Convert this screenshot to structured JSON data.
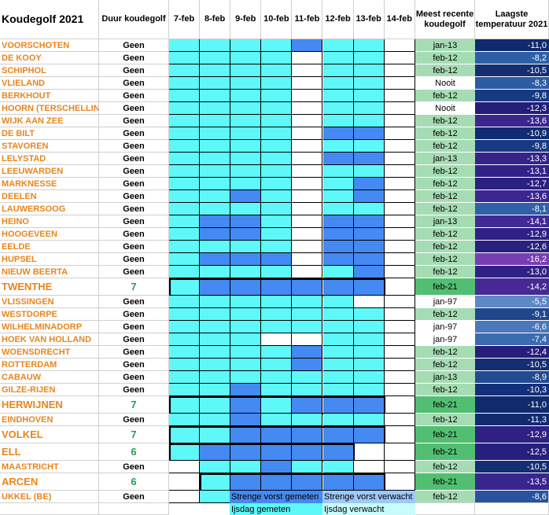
{
  "title": "Koudegolf 2021",
  "headers": {
    "duration": "Duur koudegolf",
    "days": [
      "7-feb",
      "8-feb",
      "9-feb",
      "10-feb",
      "11-feb",
      "12-feb",
      "13-feb",
      "14-feb"
    ],
    "recent": "Meest recente koudegolf",
    "lowest": "Laagste temperatuur 2021"
  },
  "colors": {
    "ijsdag_gemeten": "#5ef8f8",
    "strenge_gemeten": "#4589f2",
    "recent_light": "#a6dcb4",
    "recent_dark": "#52be72",
    "station": "#e8851c",
    "wave_count": "#20a050"
  },
  "day_codes": {
    "I": "IJsdag gemeten",
    "S": "Strenge vorst gemeten",
    "W": "Geen ijsdag"
  },
  "rows": [
    {
      "station": "VOORSCHOTEN",
      "duration": "Geen",
      "days": "IIIISIIW",
      "recent": "jan-13",
      "lowest": "-11,0",
      "temp_color": "#0f2a6d"
    },
    {
      "station": "DE KOOY",
      "duration": "Geen",
      "days": "IIIIWIIW",
      "recent": "feb-12",
      "lowest": "-8,2",
      "temp_color": "#2e5fa6"
    },
    {
      "station": "SCHIPHOL",
      "duration": "Geen",
      "days": "IIIIWIIW",
      "recent": "feb-12",
      "lowest": "-10,5",
      "temp_color": "#142d73"
    },
    {
      "station": "VLIELAND",
      "duration": "Geen",
      "days": "IIIIWIIW",
      "recent": "Nooit",
      "lowest": "-8,3",
      "temp_color": "#2c5ca3"
    },
    {
      "station": "BERKHOUT",
      "duration": "Geen",
      "days": "IIIIWIIW",
      "recent": "feb-12",
      "lowest": "-9,8",
      "temp_color": "#183a82"
    },
    {
      "station": "HOORN (TERSCHELLING)",
      "duration": "Geen",
      "days": "IIIIWIIW",
      "recent": "Nooit",
      "lowest": "-12,3",
      "temp_color": "#231e7a"
    },
    {
      "station": "WIJK AAN ZEE",
      "duration": "Geen",
      "days": "IIIIWIIW",
      "recent": "feb-12",
      "lowest": "-13,6",
      "temp_color": "#3b2690"
    },
    {
      "station": "DE BILT",
      "duration": "Geen",
      "days": "IIIIWSSW",
      "recent": "feb-12",
      "lowest": "-10,9",
      "temp_color": "#102b6f"
    },
    {
      "station": "STAVOREN",
      "duration": "Geen",
      "days": "IIIIWIIW",
      "recent": "feb-12",
      "lowest": "-9,8",
      "temp_color": "#183a82"
    },
    {
      "station": "LELYSTAD",
      "duration": "Geen",
      "days": "IIIIWSSW",
      "recent": "jan-13",
      "lowest": "-13,3",
      "temp_color": "#36238a"
    },
    {
      "station": "LEEUWARDEN",
      "duration": "Geen",
      "days": "IIIIWIIW",
      "recent": "feb-12",
      "lowest": "-13,1",
      "temp_color": "#322286"
    },
    {
      "station": "MARKNESSE",
      "duration": "Geen",
      "days": "IIIIWISW",
      "recent": "feb-12",
      "lowest": "-12,7",
      "temp_color": "#2a2080"
    },
    {
      "station": "DEELEN",
      "duration": "Geen",
      "days": "IISIWISW",
      "recent": "feb-12",
      "lowest": "-13,6",
      "temp_color": "#3b2690"
    },
    {
      "station": "LAUWERSOOG",
      "duration": "Geen",
      "days": "IIIIWIIW",
      "recent": "feb-12",
      "lowest": "-8,1",
      "temp_color": "#3061a8"
    },
    {
      "station": "HEINO",
      "duration": "Geen",
      "days": "ISSIWSSW",
      "recent": "jan-13",
      "lowest": "-14,1",
      "temp_color": "#432994"
    },
    {
      "station": "HOOGEVEEN",
      "duration": "Geen",
      "days": "ISSIWSSW",
      "recent": "feb-12",
      "lowest": "-12,9",
      "temp_color": "#2e2183"
    },
    {
      "station": "EELDE",
      "duration": "Geen",
      "days": "IIIIWSSW",
      "recent": "feb-12",
      "lowest": "-12,6",
      "temp_color": "#281f7e"
    },
    {
      "station": "HUPSEL",
      "duration": "Geen",
      "days": "ISSSWSSW",
      "recent": "feb-12",
      "lowest": "-16,2",
      "temp_color": "#7a3eb3"
    },
    {
      "station": "NIEUW BEERTA",
      "duration": "Geen",
      "days": "IIIIWISW",
      "recent": "feb-12",
      "lowest": "-13,0",
      "temp_color": "#302285"
    },
    {
      "station": "TWENTHE",
      "duration": "7",
      "days": "ISSSSSSW",
      "recent": "feb-21",
      "lowest": "-14,2",
      "temp_color": "#452a95",
      "wave": true,
      "span": [
        0,
        7
      ]
    },
    {
      "station": "VLISSINGEN",
      "duration": "Geen",
      "days": "IIIIIIWW",
      "recent": "jan-97",
      "lowest": "-5,5",
      "temp_color": "#5d88c3"
    },
    {
      "station": "WESTDORPE",
      "duration": "Geen",
      "days": "IIIIIIIW",
      "recent": "feb-12",
      "lowest": "-9,1",
      "temp_color": "#20478d"
    },
    {
      "station": "WILHELMINADORP",
      "duration": "Geen",
      "days": "IIIIIIIW",
      "recent": "jan-97",
      "lowest": "-6,6",
      "temp_color": "#4a78b8"
    },
    {
      "station": "HOEK VAN HOLLAND",
      "duration": "Geen",
      "days": "IIIWWIIW",
      "recent": "jan-97",
      "lowest": "-7,4",
      "temp_color": "#3d6bb0"
    },
    {
      "station": "WOENSDRECHT",
      "duration": "Geen",
      "days": "IIIISIIW",
      "recent": "feb-12",
      "lowest": "-12,4",
      "temp_color": "#251e7b"
    },
    {
      "station": "ROTTERDAM",
      "duration": "Geen",
      "days": "IIIISIIW",
      "recent": "feb-12",
      "lowest": "-10,5",
      "temp_color": "#142d73"
    },
    {
      "station": "CABAUW",
      "duration": "Geen",
      "days": "IIIIIIIW",
      "recent": "jan-13",
      "lowest": "-8,9",
      "temp_color": "#234b91"
    },
    {
      "station": "GILZE-RIJEN",
      "duration": "Geen",
      "days": "IISIIIIW",
      "recent": "feb-12",
      "lowest": "-10,3",
      "temp_color": "#15307a"
    },
    {
      "station": "HERWIJNEN",
      "duration": "7",
      "days": "IISISSSW",
      "recent": "feb-21",
      "lowest": "-11,0",
      "temp_color": "#0f2a6d",
      "wave": true,
      "span": [
        0,
        7
      ]
    },
    {
      "station": "EINDHOVEN",
      "duration": "Geen",
      "days": "IISIIIIW",
      "recent": "feb-12",
      "lowest": "-11,3",
      "temp_color": "#122a70"
    },
    {
      "station": "VOLKEL",
      "duration": "7",
      "days": "IISSSSSW",
      "recent": "feb-21",
      "lowest": "-12,9",
      "temp_color": "#2e2183",
      "wave": true,
      "span": [
        0,
        7
      ]
    },
    {
      "station": "ELL",
      "duration": "6",
      "days": "ISSSSSWW",
      "recent": "feb-21",
      "lowest": "-12,5",
      "temp_color": "#271f7d",
      "wave": true,
      "span": [
        0,
        6
      ]
    },
    {
      "station": "MAASTRICHT",
      "duration": "Geen",
      "days": "WIISIIWW",
      "recent": "feb-12",
      "lowest": "-10,5",
      "temp_color": "#142d73"
    },
    {
      "station": "ARCEN",
      "duration": "6",
      "days": "WISSSSSW",
      "recent": "feb-21",
      "lowest": "-13,5",
      "temp_color": "#39258e",
      "wave": true,
      "span": [
        1,
        7
      ]
    },
    {
      "station": "UKKEL (BE)",
      "duration": "Geen",
      "days": "WIIIWIIW",
      "recent": "feb-12",
      "lowest": "-8,6",
      "temp_color": "#28549d"
    }
  ],
  "legend": {
    "strenge_gemeten": "Strenge vorst gemeten",
    "strenge_verwacht": "Strenge vorst verwacht",
    "ijsdag_gemeten": "Ijsdag gemeten",
    "ijsdag_verwacht": "Ijsdag verwacht"
  }
}
